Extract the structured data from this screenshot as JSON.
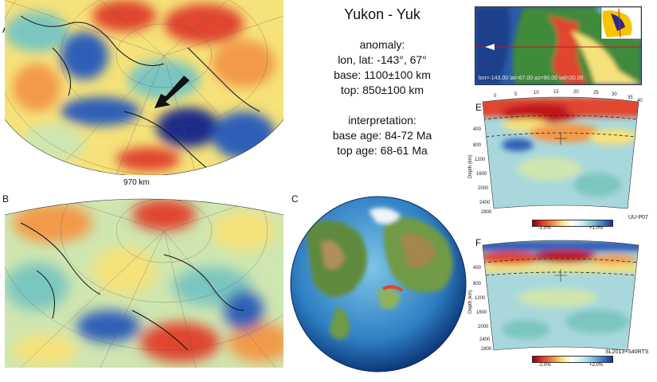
{
  "header": {
    "title": "Yukon - Yuk"
  },
  "anomaly": {
    "heading": "anomaly:",
    "location": "lon, lat: -143°, 67°",
    "base": "base: 1100±100 km",
    "top": "top: 850±100 km"
  },
  "interpretation": {
    "heading": "interpretation:",
    "base_age": "base age: 84-72 Ma",
    "top_age": "top age: 68-61 Ma"
  },
  "panels": {
    "a": "A",
    "b": "B",
    "c": "C",
    "e": "E",
    "f": "F"
  },
  "scale_bar": "970 km",
  "section_e": {
    "model": "UU-P07",
    "colorbar_min": "-1.0%",
    "colorbar_max": "+1.0%",
    "x_ticks": [
      "0",
      "5",
      "10",
      "15",
      "20",
      "25",
      "30",
      "35",
      "40"
    ],
    "depth_ticks": [
      "400",
      "800",
      "1200",
      "1600",
      "2000",
      "2400",
      "2800"
    ],
    "depth_label": "Depth (km)"
  },
  "section_f": {
    "model": "SL2013+S40RTS",
    "colorbar_min": "-2.0%",
    "colorbar_max": "+2.0%",
    "depth_ticks": [
      "400",
      "800",
      "1200",
      "1600",
      "2000",
      "2400",
      "2800"
    ],
    "depth_label": "Depth (km)"
  },
  "inset": {
    "caption": "lon=-143.00 lat=67.00 az=90.00 wd=20.00"
  },
  "colors": {
    "red": "#e0452e",
    "orange": "#f29a4a",
    "yellow": "#f6e27a",
    "light_green": "#cfe6b0",
    "teal": "#7cc6c0",
    "blue": "#2f5fb8",
    "dark_blue": "#1b2a8a"
  }
}
